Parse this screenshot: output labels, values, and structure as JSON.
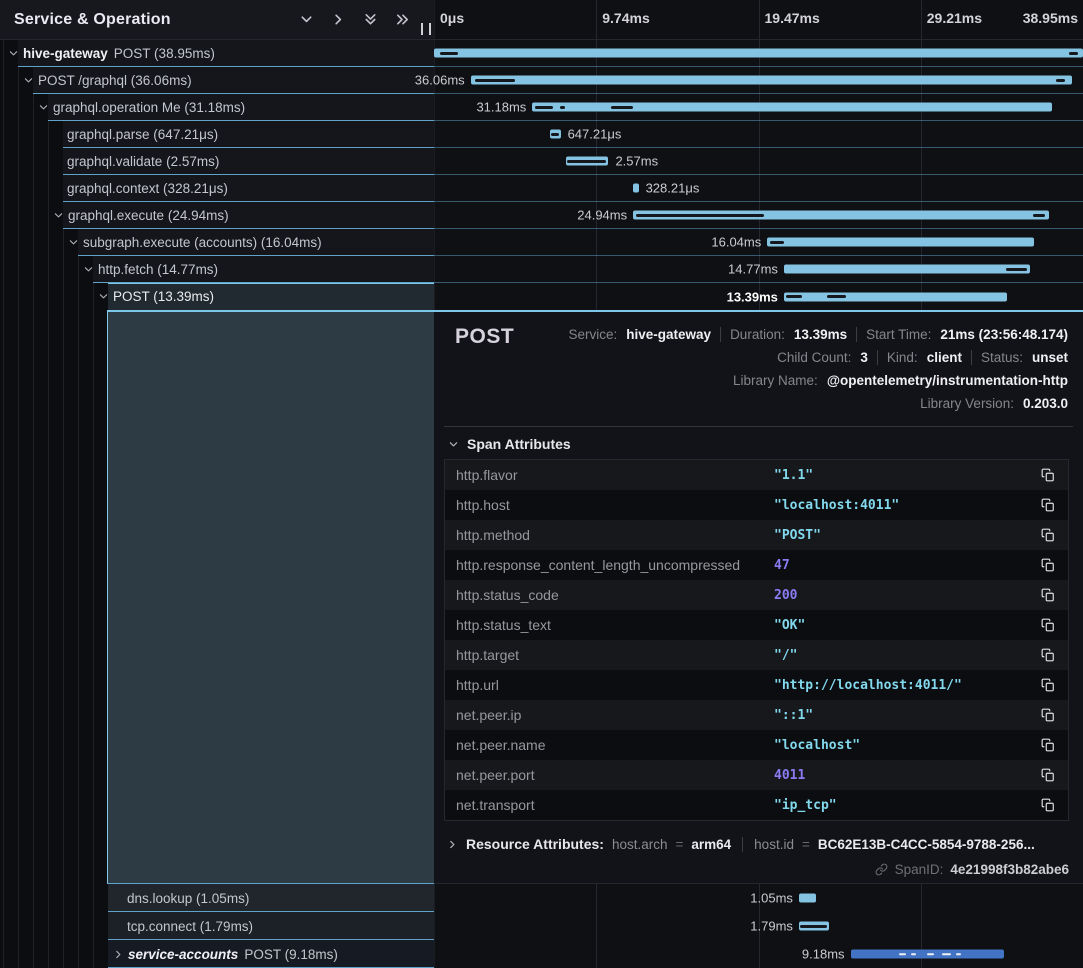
{
  "header": {
    "title": "Service & Operation",
    "icons": [
      "chevron-down-icon",
      "chevron-right-icon",
      "double-chevron-down-icon",
      "double-chevron-right-icon"
    ]
  },
  "colors": {
    "accent_bar": "#84c3e2",
    "alt_bar": "#4273c4",
    "row_separator": "#5fa3c9",
    "selected_border": "#7cc7ea",
    "detail_block_bg": "#2d3b44",
    "string_value": "#82d9ee",
    "number_value": "#8b7cf4"
  },
  "timeline": {
    "total_ms": 38.95,
    "ruler_ticks": [
      {
        "label": "0μs",
        "pos": 0
      },
      {
        "label": "9.74ms",
        "pos": 25
      },
      {
        "label": "19.47ms",
        "pos": 50
      },
      {
        "label": "29.21ms",
        "pos": 75
      },
      {
        "label": "38.95ms",
        "pos": 100
      }
    ],
    "spans": [
      {
        "service": "hive-gateway",
        "op": "POST",
        "dur": "38.95ms",
        "level": 0,
        "chevron": "down",
        "bar": {
          "start": 0,
          "dur": 38.95
        },
        "label": "",
        "side": "none",
        "markers": [
          {
            "s": 0.35,
            "d": 1.1
          },
          {
            "s": 38.1,
            "d": 0.55
          }
        ]
      },
      {
        "op": "POST /graphql",
        "dur": "36.06ms",
        "level": 1,
        "chevron": "down",
        "bar": {
          "start": 2.2,
          "dur": 36.06
        },
        "label": "36.06ms",
        "side": "left",
        "markers": [
          {
            "s": 2.45,
            "d": 2.4
          },
          {
            "s": 37.3,
            "d": 0.6
          }
        ]
      },
      {
        "op": "graphql.operation Me",
        "dur": "31.18ms",
        "level": 2,
        "chevron": "down",
        "bar": {
          "start": 5.9,
          "dur": 31.18
        },
        "label": "31.18ms",
        "side": "left",
        "markers": [
          {
            "s": 6.05,
            "d": 1.1
          },
          {
            "s": 7.55,
            "d": 0.3
          },
          {
            "s": 10.6,
            "d": 1.35
          }
        ]
      },
      {
        "op": "graphql.parse",
        "dur": "647.21μs",
        "level": 3,
        "chevron": null,
        "bar": {
          "start": 6.95,
          "dur": 0.647
        },
        "label": "647.21μs",
        "side": "right",
        "markers": [
          {
            "s": 7.0,
            "d": 0.5
          }
        ]
      },
      {
        "op": "graphql.validate",
        "dur": "2.57ms",
        "level": 3,
        "chevron": null,
        "bar": {
          "start": 7.9,
          "dur": 2.57
        },
        "label": "2.57ms",
        "side": "right",
        "markers": [
          {
            "s": 8.0,
            "d": 2.3
          }
        ]
      },
      {
        "op": "graphql.context",
        "dur": "328.21μs",
        "level": 3,
        "chevron": null,
        "bar": {
          "start": 11.95,
          "dur": 0.328
        },
        "label": "328.21μs",
        "side": "right",
        "markers": []
      },
      {
        "op": "graphql.execute",
        "dur": "24.94ms",
        "level": 3,
        "chevron": "down",
        "bar": {
          "start": 11.95,
          "dur": 24.94
        },
        "label": "24.94ms",
        "side": "left",
        "markers": [
          {
            "s": 12.1,
            "d": 7.7
          },
          {
            "s": 35.95,
            "d": 0.7
          }
        ]
      },
      {
        "op": "subgraph.execute (accounts)",
        "dur": "16.04ms",
        "level": 4,
        "chevron": "down",
        "bar": {
          "start": 20.0,
          "dur": 16.04
        },
        "label": "16.04ms",
        "side": "left",
        "markers": [
          {
            "s": 20.15,
            "d": 0.85
          }
        ]
      },
      {
        "op": "http.fetch",
        "dur": "14.77ms",
        "level": 5,
        "chevron": "down",
        "bar": {
          "start": 21.0,
          "dur": 14.77
        },
        "label": "14.77ms",
        "side": "left",
        "markers": [
          {
            "s": 34.3,
            "d": 1.3
          }
        ]
      },
      {
        "op": "POST",
        "dur": "13.39ms",
        "level": 6,
        "chevron": "down",
        "selected": true,
        "bar": {
          "start": 21.0,
          "dur": 13.39
        },
        "label": "13.39ms",
        "side": "left",
        "markers": [
          {
            "s": 21.15,
            "d": 0.95
          },
          {
            "s": 23.6,
            "d": 1.15
          }
        ]
      }
    ],
    "bottom_spans": [
      {
        "op": "dns.lookup",
        "dur": "1.05ms",
        "level": 7,
        "chevron": null,
        "bg": "#20262c",
        "bar": {
          "start": 21.9,
          "dur": 1.05
        },
        "label": "1.05ms",
        "side": "left",
        "markers": []
      },
      {
        "op": "tcp.connect",
        "dur": "1.79ms",
        "level": 7,
        "chevron": null,
        "bg": "#1b2127",
        "bar": {
          "start": 21.9,
          "dur": 1.79
        },
        "label": "1.79ms",
        "side": "left",
        "markers": [
          {
            "s": 21.98,
            "d": 1.62
          }
        ]
      },
      {
        "service": "service-accounts",
        "service_italic": true,
        "op": "POST",
        "dur": "9.18ms",
        "level": 7,
        "chevron": "right",
        "bg": "#161b23",
        "color": "alt",
        "bar": {
          "start": 25.0,
          "dur": 9.18
        },
        "label": "9.18ms",
        "side": "left",
        "markers": [],
        "markers_light": [
          {
            "s": 27.9,
            "d": 0.45
          },
          {
            "s": 28.6,
            "d": 0.3
          },
          {
            "s": 29.6,
            "d": 0.4
          },
          {
            "s": 30.5,
            "d": 0.5
          },
          {
            "s": 31.3,
            "d": 0.3
          }
        ]
      }
    ]
  },
  "detail": {
    "title": "POST",
    "meta_lines": [
      [
        {
          "label": "Service:",
          "value": "hive-gateway"
        },
        {
          "label": "Duration:",
          "value": "13.39ms"
        },
        {
          "label": "Start Time:",
          "value": "21ms (23:56:48.174)"
        }
      ],
      [
        {
          "label": "Child Count:",
          "value": "3"
        },
        {
          "label": "Kind:",
          "value": "client"
        },
        {
          "label": "Status:",
          "value": "unset"
        }
      ],
      [
        {
          "label": "Library Name:",
          "value": "@opentelemetry/instrumentation-http"
        }
      ],
      [
        {
          "label": "Library Version:",
          "value": "0.203.0"
        }
      ]
    ],
    "sections": {
      "span_attributes": "Span Attributes"
    },
    "attributes": [
      {
        "key": "http.flavor",
        "value": "\"1.1\"",
        "type": "string"
      },
      {
        "key": "http.host",
        "value": "\"localhost:4011\"",
        "type": "string"
      },
      {
        "key": "http.method",
        "value": "\"POST\"",
        "type": "string"
      },
      {
        "key": "http.response_content_length_uncompressed",
        "value": "47",
        "type": "number"
      },
      {
        "key": "http.status_code",
        "value": "200",
        "type": "number"
      },
      {
        "key": "http.status_text",
        "value": "\"OK\"",
        "type": "string"
      },
      {
        "key": "http.target",
        "value": "\"/\"",
        "type": "string"
      },
      {
        "key": "http.url",
        "value": "\"http://localhost:4011/\"",
        "type": "string"
      },
      {
        "key": "net.peer.ip",
        "value": "\"::1\"",
        "type": "string"
      },
      {
        "key": "net.peer.name",
        "value": "\"localhost\"",
        "type": "string"
      },
      {
        "key": "net.peer.port",
        "value": "4011",
        "type": "number"
      },
      {
        "key": "net.transport",
        "value": "\"ip_tcp\"",
        "type": "string"
      }
    ],
    "resource": {
      "label": "Resource Attributes:",
      "items": [
        {
          "key": "host.arch",
          "value": "arm64"
        },
        {
          "key": "host.id",
          "value": "BC62E13B-C4CC-5854-9788-256..."
        }
      ]
    },
    "span_id": {
      "label": "SpanID:",
      "value": "4e21998f3b82abe6"
    }
  }
}
